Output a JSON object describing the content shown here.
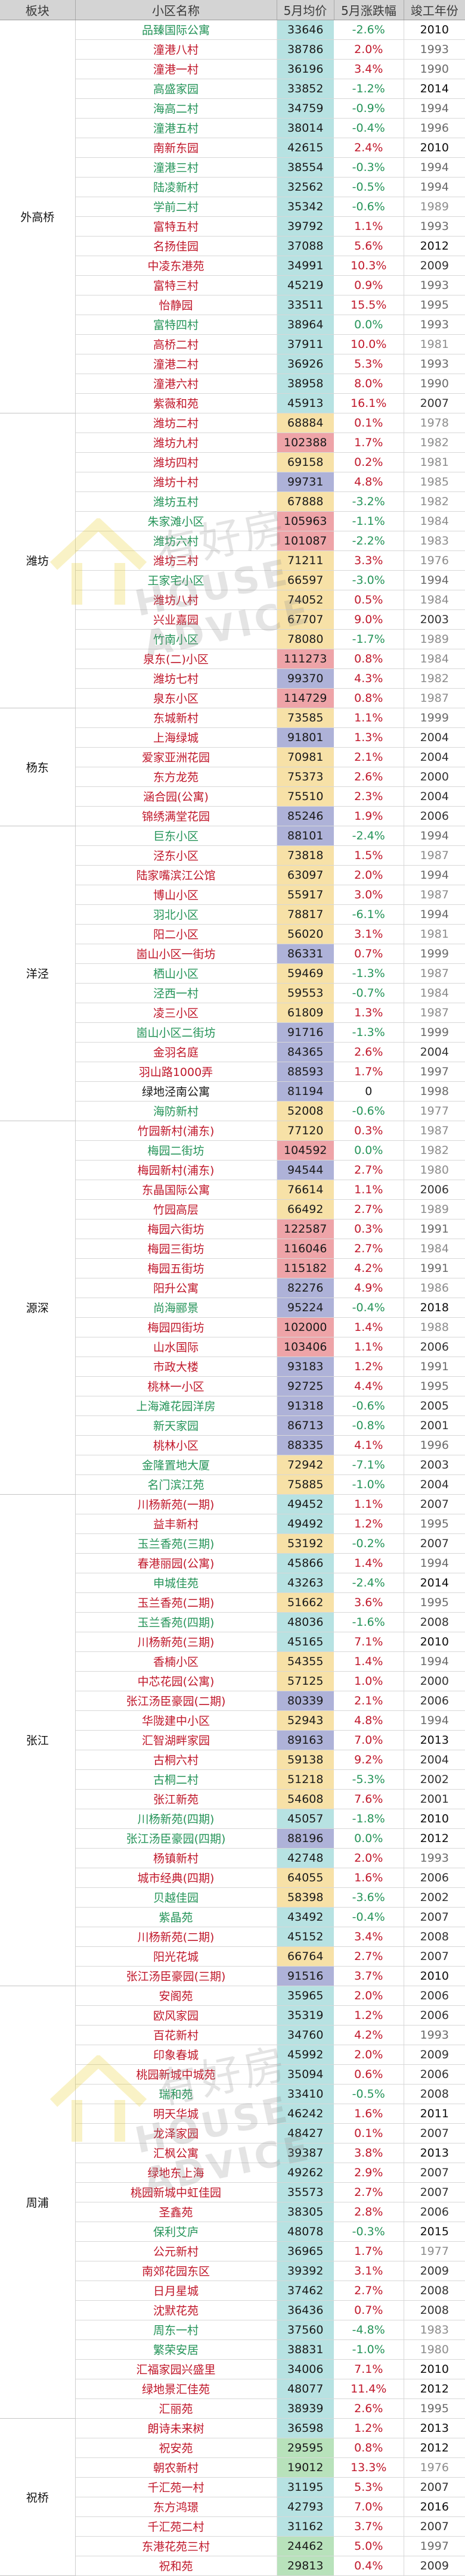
{
  "header": {
    "area": "板块",
    "name": "小区名称",
    "price": "5月均价",
    "change": "5月涨跌幅",
    "year": "竣工年份"
  },
  "watermark": {
    "cn": "有好房",
    "en": "HOUSE ADVICE"
  },
  "colors": {
    "up": "#c0172a",
    "down": "#259459",
    "price_lt30k": "#b8e2bb",
    "price_30_50k": "#b7e2e2",
    "price_50_80k": "#f7e1a7",
    "price_80_100k": "#aeb2d8",
    "price_gt100k": "#eea4a8",
    "header_bg": "#d4d4d4"
  },
  "groups": [
    {
      "area": "外高桥",
      "rows": [
        {
          "name": "品臻国际公寓",
          "price": "33646",
          "change": "-2.6%",
          "year": "2010"
        },
        {
          "name": "潼港八村",
          "price": "38786",
          "change": "2.0%",
          "year": "1993"
        },
        {
          "name": "潼港一村",
          "price": "36196",
          "change": "3.4%",
          "year": "1990"
        },
        {
          "name": "高盛家园",
          "price": "33852",
          "change": "-1.2%",
          "year": "2014"
        },
        {
          "name": "海高二村",
          "price": "34759",
          "change": "-0.9%",
          "year": "1994"
        },
        {
          "name": "潼港五村",
          "price": "38014",
          "change": "-0.4%",
          "year": "1996"
        },
        {
          "name": "南新东园",
          "price": "42615",
          "change": "2.4%",
          "year": "2010"
        },
        {
          "name": "潼港三村",
          "price": "38554",
          "change": "-0.3%",
          "year": "1994"
        },
        {
          "name": "陆凌新村",
          "price": "32562",
          "change": "-0.5%",
          "year": "1994"
        },
        {
          "name": "学前二村",
          "price": "35342",
          "change": "-0.6%",
          "year": "1989"
        },
        {
          "name": "富特五村",
          "price": "39792",
          "change": "1.1%",
          "year": "1993"
        },
        {
          "name": "名扬佳园",
          "price": "37088",
          "change": "5.6%",
          "year": "2012"
        },
        {
          "name": "中凌东港苑",
          "price": "34991",
          "change": "10.3%",
          "year": "2009"
        },
        {
          "name": "富特三村",
          "price": "45219",
          "change": "0.9%",
          "year": "1993"
        },
        {
          "name": "怡静园",
          "price": "33511",
          "change": "15.5%",
          "year": "1995"
        },
        {
          "name": "富特四村",
          "price": "38964",
          "change": "0.0%",
          "year": "1993"
        },
        {
          "name": "高桥二村",
          "price": "37911",
          "change": "10.0%",
          "year": "1981"
        },
        {
          "name": "潼港二村",
          "price": "36926",
          "change": "5.3%",
          "year": "1993"
        },
        {
          "name": "潼港六村",
          "price": "38958",
          "change": "8.0%",
          "year": "1990"
        },
        {
          "name": "紫薇和苑",
          "price": "45913",
          "change": "16.1%",
          "year": "2007"
        }
      ]
    },
    {
      "area": "潍坊",
      "rows": [
        {
          "name": "潍坊二村",
          "price": "68884",
          "change": "0.1%",
          "year": "1978"
        },
        {
          "name": "潍坊九村",
          "price": "102388",
          "change": "1.7%",
          "year": "1982"
        },
        {
          "name": "潍坊四村",
          "price": "69158",
          "change": "0.2%",
          "year": "1981"
        },
        {
          "name": "潍坊十村",
          "price": "99731",
          "change": "4.8%",
          "year": "1985"
        },
        {
          "name": "潍坊五村",
          "price": "67888",
          "change": "-3.2%",
          "year": "1982"
        },
        {
          "name": "朱家滩小区",
          "price": "105963",
          "change": "-1.1%",
          "year": "1984"
        },
        {
          "name": "潍坊六村",
          "price": "101087",
          "change": "-2.2%",
          "year": "1983"
        },
        {
          "name": "潍坊三村",
          "price": "71211",
          "change": "3.3%",
          "year": "1976"
        },
        {
          "name": "王家宅小区",
          "price": "66597",
          "change": "-3.0%",
          "year": "1994"
        },
        {
          "name": "潍坊八村",
          "price": "74052",
          "change": "0.5%",
          "year": "1984"
        },
        {
          "name": "兴业嘉园",
          "price": "67707",
          "change": "9.0%",
          "year": "2003"
        },
        {
          "name": "竹南小区",
          "price": "78080",
          "change": "-1.7%",
          "year": "1989"
        },
        {
          "name": "泉东(二)小区",
          "price": "111273",
          "change": "0.8%",
          "year": "1984"
        },
        {
          "name": "潍坊七村",
          "price": "99370",
          "change": "4.3%",
          "year": "1982"
        },
        {
          "name": "泉东小区",
          "price": "114729",
          "change": "0.8%",
          "year": "1987"
        }
      ]
    },
    {
      "area": "杨东",
      "rows": [
        {
          "name": "东城新村",
          "price": "73585",
          "change": "1.1%",
          "year": "1999"
        },
        {
          "name": "上海绿城",
          "price": "91801",
          "change": "1.3%",
          "year": "2004"
        },
        {
          "name": "爱家亚洲花园",
          "price": "70981",
          "change": "2.1%",
          "year": "2004"
        },
        {
          "name": "东方龙苑",
          "price": "75373",
          "change": "2.6%",
          "year": "2000"
        },
        {
          "name": "涵合园(公寓)",
          "price": "75510",
          "change": "2.3%",
          "year": "2004"
        },
        {
          "name": "锦绣满堂花园",
          "price": "85246",
          "change": "1.9%",
          "year": "2006"
        }
      ]
    },
    {
      "area": "洋泾",
      "rows": [
        {
          "name": "巨东小区",
          "price": "88101",
          "change": "-2.4%",
          "year": "1994"
        },
        {
          "name": "泾东小区",
          "price": "73818",
          "change": "1.5%",
          "year": "1987"
        },
        {
          "name": "陆家嘴滨江公馆",
          "price": "63097",
          "change": "2.0%",
          "year": "1994"
        },
        {
          "name": "博山小区",
          "price": "55917",
          "change": "3.0%",
          "year": "1987"
        },
        {
          "name": "羽北小区",
          "price": "78817",
          "change": "-6.1%",
          "year": "1994"
        },
        {
          "name": "阳二小区",
          "price": "56020",
          "change": "3.1%",
          "year": "1981"
        },
        {
          "name": "崮山小区一街坊",
          "price": "86331",
          "change": "0.7%",
          "year": "1999"
        },
        {
          "name": "栖山小区",
          "price": "59469",
          "change": "-1.3%",
          "year": "1987"
        },
        {
          "name": "泾西一村",
          "price": "59553",
          "change": "-0.7%",
          "year": "1984"
        },
        {
          "name": "凌三小区",
          "price": "61809",
          "change": "1.3%",
          "year": "1987"
        },
        {
          "name": "崮山小区二街坊",
          "price": "91716",
          "change": "-1.3%",
          "year": "1999"
        },
        {
          "name": "金羽名庭",
          "price": "84365",
          "change": "2.6%",
          "year": "2004"
        },
        {
          "name": "羽山路1000弄",
          "price": "88593",
          "change": "1.7%",
          "year": "1997"
        },
        {
          "name": "绿地泾南公寓",
          "price": "81194",
          "change": "0",
          "year": "1998"
        },
        {
          "name": "海防新村",
          "price": "52008",
          "change": "-0.6%",
          "year": "1977"
        }
      ]
    },
    {
      "area": "源深",
      "rows": [
        {
          "name": "竹园新村(浦东)",
          "price": "77120",
          "change": "0.3%",
          "year": "1987"
        },
        {
          "name": "梅园二街坊",
          "price": "104592",
          "change": "0.0%",
          "year": "1982"
        },
        {
          "name": "梅园新村(浦东)",
          "price": "94544",
          "change": "2.7%",
          "year": "1980"
        },
        {
          "name": "东晶国际公寓",
          "price": "76614",
          "change": "1.1%",
          "year": "2006"
        },
        {
          "name": "竹园高层",
          "price": "66492",
          "change": "2.7%",
          "year": "1989"
        },
        {
          "name": "梅园六街坊",
          "price": "122587",
          "change": "0.3%",
          "year": "1991"
        },
        {
          "name": "梅园三街坊",
          "price": "116046",
          "change": "2.7%",
          "year": "1984"
        },
        {
          "name": "梅园五街坊",
          "price": "115182",
          "change": "4.2%",
          "year": "1991"
        },
        {
          "name": "阳升公寓",
          "price": "82276",
          "change": "4.9%",
          "year": "1986"
        },
        {
          "name": "尚海郦景",
          "price": "95224",
          "change": "-0.4%",
          "year": "2018"
        },
        {
          "name": "梅园四街坊",
          "price": "102000",
          "change": "1.4%",
          "year": "1988"
        },
        {
          "name": "山水国际",
          "price": "103406",
          "change": "1.1%",
          "year": "2006"
        },
        {
          "name": "市政大楼",
          "price": "93183",
          "change": "1.2%",
          "year": "1991"
        },
        {
          "name": "桃林一小区",
          "price": "92725",
          "change": "4.4%",
          "year": "1995"
        },
        {
          "name": "上海滩花园洋房",
          "price": "91318",
          "change": "-0.6%",
          "year": "2005"
        },
        {
          "name": "新天家园",
          "price": "86713",
          "change": "-0.8%",
          "year": "2001"
        },
        {
          "name": "桃林小区",
          "price": "88335",
          "change": "4.1%",
          "year": "1996"
        },
        {
          "name": "金隆置地大厦",
          "price": "72942",
          "change": "-7.1%",
          "year": "2003"
        },
        {
          "name": "名门滨江苑",
          "price": "75885",
          "change": "-1.0%",
          "year": "2004"
        }
      ]
    },
    {
      "area": "张江",
      "rows": [
        {
          "name": "川杨新苑(一期)",
          "price": "49452",
          "change": "1.1%",
          "year": "2007"
        },
        {
          "name": "益丰新村",
          "price": "49492",
          "change": "1.2%",
          "year": "1995"
        },
        {
          "name": "玉兰香苑(三期)",
          "price": "53192",
          "change": "-0.2%",
          "year": "2007"
        },
        {
          "name": "春港丽园(公寓)",
          "price": "45866",
          "change": "1.4%",
          "year": "1994"
        },
        {
          "name": "申城佳苑",
          "price": "43263",
          "change": "-2.4%",
          "year": "2014"
        },
        {
          "name": "玉兰香苑(二期)",
          "price": "51662",
          "change": "3.6%",
          "year": "1995"
        },
        {
          "name": "玉兰香苑(四期)",
          "price": "48036",
          "change": "-1.6%",
          "year": "2008"
        },
        {
          "name": "川杨新苑(三期)",
          "price": "45165",
          "change": "7.1%",
          "year": "2010"
        },
        {
          "name": "香楠小区",
          "price": "54355",
          "change": "1.4%",
          "year": "1994"
        },
        {
          "name": "中芯花园(公寓)",
          "price": "57125",
          "change": "1.0%",
          "year": "2000"
        },
        {
          "name": "张江汤臣豪园(二期)",
          "price": "80339",
          "change": "2.1%",
          "year": "2006"
        },
        {
          "name": "华陇建中小区",
          "price": "52943",
          "change": "4.8%",
          "year": "1994"
        },
        {
          "name": "汇智湖畔家园",
          "price": "89163",
          "change": "7.0%",
          "year": "2013"
        },
        {
          "name": "古桐六村",
          "price": "59138",
          "change": "9.2%",
          "year": "2004"
        },
        {
          "name": "古桐二村",
          "price": "51218",
          "change": "-5.3%",
          "year": "2002"
        },
        {
          "name": "张江新苑",
          "price": "54608",
          "change": "7.6%",
          "year": "2001"
        },
        {
          "name": "川杨新苑(四期)",
          "price": "45057",
          "change": "-1.8%",
          "year": "2010"
        },
        {
          "name": "张江汤臣豪园(四期)",
          "price": "88196",
          "change": "0.0%",
          "year": "2012"
        },
        {
          "name": "杨镇新村",
          "price": "42748",
          "change": "2.0%",
          "year": "1993"
        },
        {
          "name": "城市经典(四期)",
          "price": "64055",
          "change": "1.6%",
          "year": "2006"
        },
        {
          "name": "贝越佳园",
          "price": "58398",
          "change": "-3.6%",
          "year": "2002"
        },
        {
          "name": "紫晶苑",
          "price": "43492",
          "change": "-0.4%",
          "year": "2007"
        },
        {
          "name": "川杨新苑(二期)",
          "price": "45152",
          "change": "3.4%",
          "year": "2008"
        },
        {
          "name": "阳光花城",
          "price": "66764",
          "change": "2.7%",
          "year": "2007"
        },
        {
          "name": "张江汤臣豪园(三期)",
          "price": "91516",
          "change": "3.7%",
          "year": "2010"
        }
      ]
    },
    {
      "area": "周浦",
      "rows": [
        {
          "name": "安阁苑",
          "price": "35965",
          "change": "2.0%",
          "year": "2006"
        },
        {
          "name": "欧风家园",
          "price": "35319",
          "change": "1.2%",
          "year": "2006"
        },
        {
          "name": "百花新村",
          "price": "34760",
          "change": "4.2%",
          "year": "1993"
        },
        {
          "name": "印象春城",
          "price": "45992",
          "change": "2.0%",
          "year": "2009"
        },
        {
          "name": "桃园新城中城苑",
          "price": "35094",
          "change": "0.6%",
          "year": "2006"
        },
        {
          "name": "瑞和苑",
          "price": "33410",
          "change": "-0.5%",
          "year": "2008"
        },
        {
          "name": "明天华城",
          "price": "46242",
          "change": "1.6%",
          "year": "2011"
        },
        {
          "name": "龙泽家园",
          "price": "48427",
          "change": "0.1%",
          "year": "2007"
        },
        {
          "name": "汇枫公寓",
          "price": "39387",
          "change": "3.8%",
          "year": "2013"
        },
        {
          "name": "绿地东上海",
          "price": "49262",
          "change": "2.9%",
          "year": "2007"
        },
        {
          "name": "桃园新城中虹佳园",
          "price": "35573",
          "change": "2.7%",
          "year": "2007"
        },
        {
          "name": "圣鑫苑",
          "price": "38305",
          "change": "2.8%",
          "year": "2006"
        },
        {
          "name": "保利艾庐",
          "price": "48078",
          "change": "-0.3%",
          "year": "2015"
        },
        {
          "name": "公元新村",
          "price": "36965",
          "change": "1.7%",
          "year": "1977"
        },
        {
          "name": "南郊花园东区",
          "price": "39392",
          "change": "3.1%",
          "year": "2009"
        },
        {
          "name": "日月星城",
          "price": "37462",
          "change": "2.7%",
          "year": "2008"
        },
        {
          "name": "沈默花苑",
          "price": "36436",
          "change": "0.7%",
          "year": "2008"
        },
        {
          "name": "周东一村",
          "price": "37560",
          "change": "-4.8%",
          "year": "1983"
        },
        {
          "name": "繁荣安居",
          "price": "38831",
          "change": "-1.0%",
          "year": "1980"
        },
        {
          "name": "汇福家园兴盛里",
          "price": "34006",
          "change": "7.1%",
          "year": "2010"
        },
        {
          "name": "绿地景汇佳苑",
          "price": "48077",
          "change": "11.4%",
          "year": "2012"
        },
        {
          "name": "汇丽苑",
          "price": "38939",
          "change": "2.6%",
          "year": "1995"
        }
      ]
    },
    {
      "area": "祝桥",
      "rows": [
        {
          "name": "朗诗未来树",
          "price": "36598",
          "change": "1.2%",
          "year": "2013"
        },
        {
          "name": "祝安苑",
          "price": "29595",
          "change": "0.8%",
          "year": "2012"
        },
        {
          "name": "朝农新村",
          "price": "19012",
          "change": "13.3%",
          "year": "1976"
        },
        {
          "name": "千汇苑一村",
          "price": "31195",
          "change": "5.3%",
          "year": "2007"
        },
        {
          "name": "东方鸿璟",
          "price": "42793",
          "change": "7.0%",
          "year": "2016"
        },
        {
          "name": "千汇苑二村",
          "price": "31162",
          "change": "3.7%",
          "year": "2007"
        },
        {
          "name": "东港花苑三村",
          "price": "24462",
          "change": "5.0%",
          "year": "1997"
        },
        {
          "name": "祝和苑",
          "price": "29813",
          "change": "0.4%",
          "year": "2009"
        }
      ]
    }
  ]
}
